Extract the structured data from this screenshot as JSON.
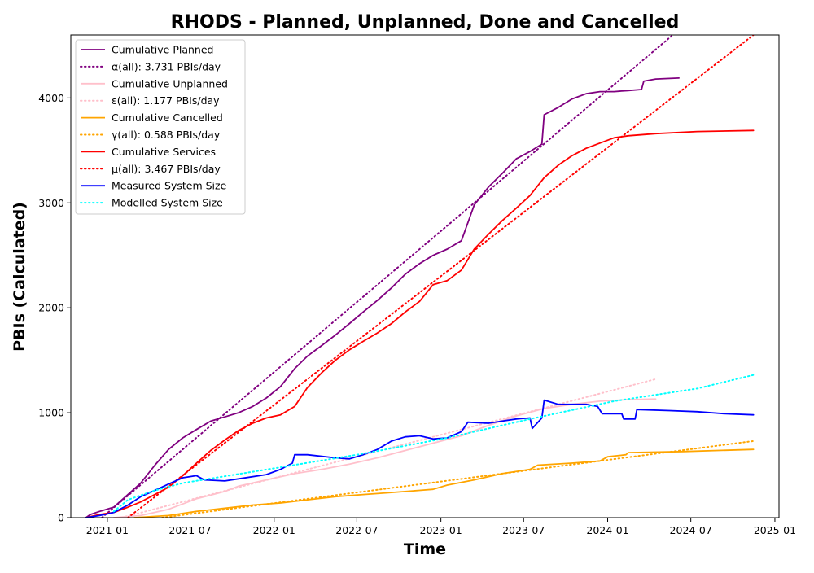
{
  "chart_data": {
    "type": "line",
    "title": "RHODS - Planned, Unplanned, Done  and Cancelled",
    "xlabel": "Time",
    "ylabel": "PBIs (Calculated)",
    "x_axis_type": "date",
    "xlim": [
      "2020-10-13",
      "2025-01-10"
    ],
    "ylim": [
      0,
      4600
    ],
    "x_ticks": [
      "2021-01",
      "2021-07",
      "2022-01",
      "2022-07",
      "2023-01",
      "2023-07",
      "2024-01",
      "2024-07",
      "2025-01"
    ],
    "y_ticks": [
      0,
      1000,
      2000,
      3000,
      4000
    ],
    "grid": false,
    "legend_position": "top-left",
    "series": [
      {
        "name": "Cumulative Planned",
        "color": "#800080",
        "style": "solid",
        "points": [
          [
            "2020-11-15",
            0
          ],
          [
            "2020-11-25",
            30
          ],
          [
            "2020-12-15",
            60
          ],
          [
            "2021-01-15",
            100
          ],
          [
            "2021-02-15",
            220
          ],
          [
            "2021-03-15",
            330
          ],
          [
            "2021-04-15",
            500
          ],
          [
            "2021-05-15",
            650
          ],
          [
            "2021-06-15",
            760
          ],
          [
            "2021-07-15",
            840
          ],
          [
            "2021-08-15",
            920
          ],
          [
            "2021-09-15",
            960
          ],
          [
            "2021-10-15",
            1000
          ],
          [
            "2021-11-15",
            1060
          ],
          [
            "2021-12-15",
            1140
          ],
          [
            "2022-01-15",
            1250
          ],
          [
            "2022-02-15",
            1420
          ],
          [
            "2022-03-15",
            1540
          ],
          [
            "2022-04-15",
            1640
          ],
          [
            "2022-05-15",
            1740
          ],
          [
            "2022-06-15",
            1850
          ],
          [
            "2022-07-15",
            1960
          ],
          [
            "2022-08-15",
            2070
          ],
          [
            "2022-09-15",
            2190
          ],
          [
            "2022-10-15",
            2320
          ],
          [
            "2022-11-15",
            2420
          ],
          [
            "2022-12-15",
            2500
          ],
          [
            "2023-01-15",
            2560
          ],
          [
            "2023-02-15",
            2640
          ],
          [
            "2023-03-15",
            2980
          ],
          [
            "2023-04-15",
            3150
          ],
          [
            "2023-05-15",
            3280
          ],
          [
            "2023-06-15",
            3420
          ],
          [
            "2023-07-15",
            3490
          ],
          [
            "2023-08-10",
            3560
          ],
          [
            "2023-08-15",
            3840
          ],
          [
            "2023-09-15",
            3910
          ],
          [
            "2023-10-15",
            3990
          ],
          [
            "2023-11-15",
            4040
          ],
          [
            "2023-12-15",
            4060
          ],
          [
            "2024-01-15",
            4060
          ],
          [
            "2024-02-15",
            4070
          ],
          [
            "2024-03-15",
            4080
          ],
          [
            "2024-03-20",
            4160
          ],
          [
            "2024-04-15",
            4180
          ],
          [
            "2024-06-05",
            4190
          ]
        ]
      },
      {
        "name": "α(all): 3.731 PBIs/day",
        "color": "#800080",
        "style": "dotted",
        "points": [
          [
            "2020-12-20",
            0
          ],
          [
            "2024-06-05",
            4650
          ]
        ]
      },
      {
        "name": "Cumulative Unplanned",
        "color": "#ffc0cb",
        "style": "solid",
        "points": [
          [
            "2021-01-15",
            0
          ],
          [
            "2021-03-15",
            20
          ],
          [
            "2021-05-15",
            80
          ],
          [
            "2021-07-15",
            180
          ],
          [
            "2021-09-15",
            250
          ],
          [
            "2021-10-15",
            300
          ],
          [
            "2021-12-15",
            360
          ],
          [
            "2022-02-15",
            420
          ],
          [
            "2022-04-15",
            460
          ],
          [
            "2022-06-15",
            510
          ],
          [
            "2022-08-15",
            570
          ],
          [
            "2022-10-15",
            640
          ],
          [
            "2022-12-15",
            710
          ],
          [
            "2023-02-15",
            780
          ],
          [
            "2023-04-15",
            880
          ],
          [
            "2023-06-15",
            970
          ],
          [
            "2023-08-15",
            1040
          ],
          [
            "2023-10-15",
            1080
          ],
          [
            "2023-12-15",
            1110
          ],
          [
            "2024-02-15",
            1125
          ],
          [
            "2024-04-15",
            1130
          ]
        ]
      },
      {
        "name": "ε(all): 1.177 PBIs/day",
        "color": "#ffc0cb",
        "style": "dotted",
        "points": [
          [
            "2021-02-01",
            0
          ],
          [
            "2024-04-15",
            1320
          ]
        ]
      },
      {
        "name": "Cumulative Cancelled",
        "color": "#ffa500",
        "style": "solid",
        "points": [
          [
            "2021-03-01",
            0
          ],
          [
            "2021-05-15",
            20
          ],
          [
            "2021-07-15",
            60
          ],
          [
            "2021-09-15",
            90
          ],
          [
            "2021-11-15",
            120
          ],
          [
            "2022-01-15",
            140
          ],
          [
            "2022-03-15",
            170
          ],
          [
            "2022-05-15",
            200
          ],
          [
            "2022-07-15",
            220
          ],
          [
            "2022-09-15",
            240
          ],
          [
            "2022-11-15",
            260
          ],
          [
            "2022-12-15",
            270
          ],
          [
            "2023-01-15",
            310
          ],
          [
            "2023-03-15",
            360
          ],
          [
            "2023-05-15",
            420
          ],
          [
            "2023-07-15",
            460
          ],
          [
            "2023-08-01",
            500
          ],
          [
            "2023-10-15",
            520
          ],
          [
            "2023-12-15",
            540
          ],
          [
            "2024-01-01",
            580
          ],
          [
            "2024-02-10",
            600
          ],
          [
            "2024-02-15",
            620
          ],
          [
            "2024-06-15",
            630
          ],
          [
            "2024-11-15",
            650
          ]
        ]
      },
      {
        "name": "γ(all): 0.588 PBIs/day",
        "color": "#ffa500",
        "style": "dotted",
        "points": [
          [
            "2021-05-01",
            0
          ],
          [
            "2024-11-15",
            730
          ]
        ]
      },
      {
        "name": "Cumulative Services",
        "color": "#ff0000",
        "style": "solid",
        "points": [
          [
            "2020-11-15",
            0
          ],
          [
            "2020-12-15",
            30
          ],
          [
            "2021-01-15",
            50
          ],
          [
            "2021-02-15",
            100
          ],
          [
            "2021-03-15",
            150
          ],
          [
            "2021-04-15",
            220
          ],
          [
            "2021-05-15",
            290
          ],
          [
            "2021-06-15",
            400
          ],
          [
            "2021-07-15",
            520
          ],
          [
            "2021-08-15",
            640
          ],
          [
            "2021-09-15",
            740
          ],
          [
            "2021-10-15",
            830
          ],
          [
            "2021-11-15",
            900
          ],
          [
            "2021-12-15",
            950
          ],
          [
            "2022-01-15",
            980
          ],
          [
            "2022-02-15",
            1060
          ],
          [
            "2022-03-15",
            1240
          ],
          [
            "2022-04-15",
            1380
          ],
          [
            "2022-05-15",
            1500
          ],
          [
            "2022-06-15",
            1600
          ],
          [
            "2022-07-15",
            1680
          ],
          [
            "2022-08-15",
            1760
          ],
          [
            "2022-09-15",
            1850
          ],
          [
            "2022-10-15",
            1960
          ],
          [
            "2022-11-15",
            2060
          ],
          [
            "2022-12-15",
            2220
          ],
          [
            "2023-01-15",
            2260
          ],
          [
            "2023-02-15",
            2360
          ],
          [
            "2023-03-15",
            2560
          ],
          [
            "2023-04-15",
            2700
          ],
          [
            "2023-05-15",
            2830
          ],
          [
            "2023-06-15",
            2950
          ],
          [
            "2023-07-15",
            3070
          ],
          [
            "2023-08-15",
            3240
          ],
          [
            "2023-09-15",
            3360
          ],
          [
            "2023-10-15",
            3450
          ],
          [
            "2023-11-15",
            3520
          ],
          [
            "2023-12-15",
            3570
          ],
          [
            "2024-01-15",
            3620
          ],
          [
            "2024-02-15",
            3640
          ],
          [
            "2024-04-15",
            3660
          ],
          [
            "2024-07-15",
            3680
          ],
          [
            "2024-11-15",
            3690
          ]
        ]
      },
      {
        "name": "μ(all): 3.467 PBIs/day",
        "color": "#ff0000",
        "style": "dotted",
        "points": [
          [
            "2021-02-15",
            0
          ],
          [
            "2024-11-15",
            4600
          ]
        ]
      },
      {
        "name": "Measured System Size",
        "color": "#0000ff",
        "style": "solid",
        "points": [
          [
            "2020-11-15",
            0
          ],
          [
            "2020-12-15",
            20
          ],
          [
            "2021-01-15",
            50
          ],
          [
            "2021-02-15",
            120
          ],
          [
            "2021-03-15",
            200
          ],
          [
            "2021-04-15",
            260
          ],
          [
            "2021-05-15",
            320
          ],
          [
            "2021-06-15",
            380
          ],
          [
            "2021-07-15",
            400
          ],
          [
            "2021-08-01",
            360
          ],
          [
            "2021-09-15",
            350
          ],
          [
            "2021-10-15",
            370
          ],
          [
            "2021-12-15",
            410
          ],
          [
            "2022-01-15",
            460
          ],
          [
            "2022-02-10",
            520
          ],
          [
            "2022-02-15",
            600
          ],
          [
            "2022-03-15",
            600
          ],
          [
            "2022-05-15",
            570
          ],
          [
            "2022-06-15",
            560
          ],
          [
            "2022-07-15",
            600
          ],
          [
            "2022-08-15",
            650
          ],
          [
            "2022-09-15",
            730
          ],
          [
            "2022-10-15",
            770
          ],
          [
            "2022-11-15",
            780
          ],
          [
            "2022-12-15",
            750
          ],
          [
            "2023-01-15",
            760
          ],
          [
            "2023-02-15",
            820
          ],
          [
            "2023-03-01",
            910
          ],
          [
            "2023-04-15",
            900
          ],
          [
            "2023-05-15",
            920
          ],
          [
            "2023-06-15",
            940
          ],
          [
            "2023-07-15",
            950
          ],
          [
            "2023-07-20",
            850
          ],
          [
            "2023-08-10",
            950
          ],
          [
            "2023-08-15",
            1120
          ],
          [
            "2023-09-15",
            1080
          ],
          [
            "2023-11-15",
            1080
          ],
          [
            "2023-12-10",
            1060
          ],
          [
            "2023-12-20",
            990
          ],
          [
            "2024-02-01",
            990
          ],
          [
            "2024-02-05",
            940
          ],
          [
            "2024-03-01",
            940
          ],
          [
            "2024-03-05",
            1030
          ],
          [
            "2024-05-15",
            1020
          ],
          [
            "2024-07-15",
            1010
          ],
          [
            "2024-09-15",
            990
          ],
          [
            "2024-11-15",
            980
          ]
        ]
      },
      {
        "name": "Modelled System Size",
        "color": "#00ffff",
        "style": "dotted",
        "points": [
          [
            "2021-01-15",
            60
          ],
          [
            "2021-02-15",
            170
          ],
          [
            "2021-04-15",
            260
          ],
          [
            "2021-06-15",
            330
          ],
          [
            "2022-01-15",
            480
          ],
          [
            "2022-07-15",
            610
          ],
          [
            "2023-01-15",
            760
          ],
          [
            "2023-07-15",
            940
          ],
          [
            "2024-01-15",
            1110
          ],
          [
            "2024-07-15",
            1230
          ],
          [
            "2024-11-15",
            1360
          ]
        ]
      }
    ]
  }
}
